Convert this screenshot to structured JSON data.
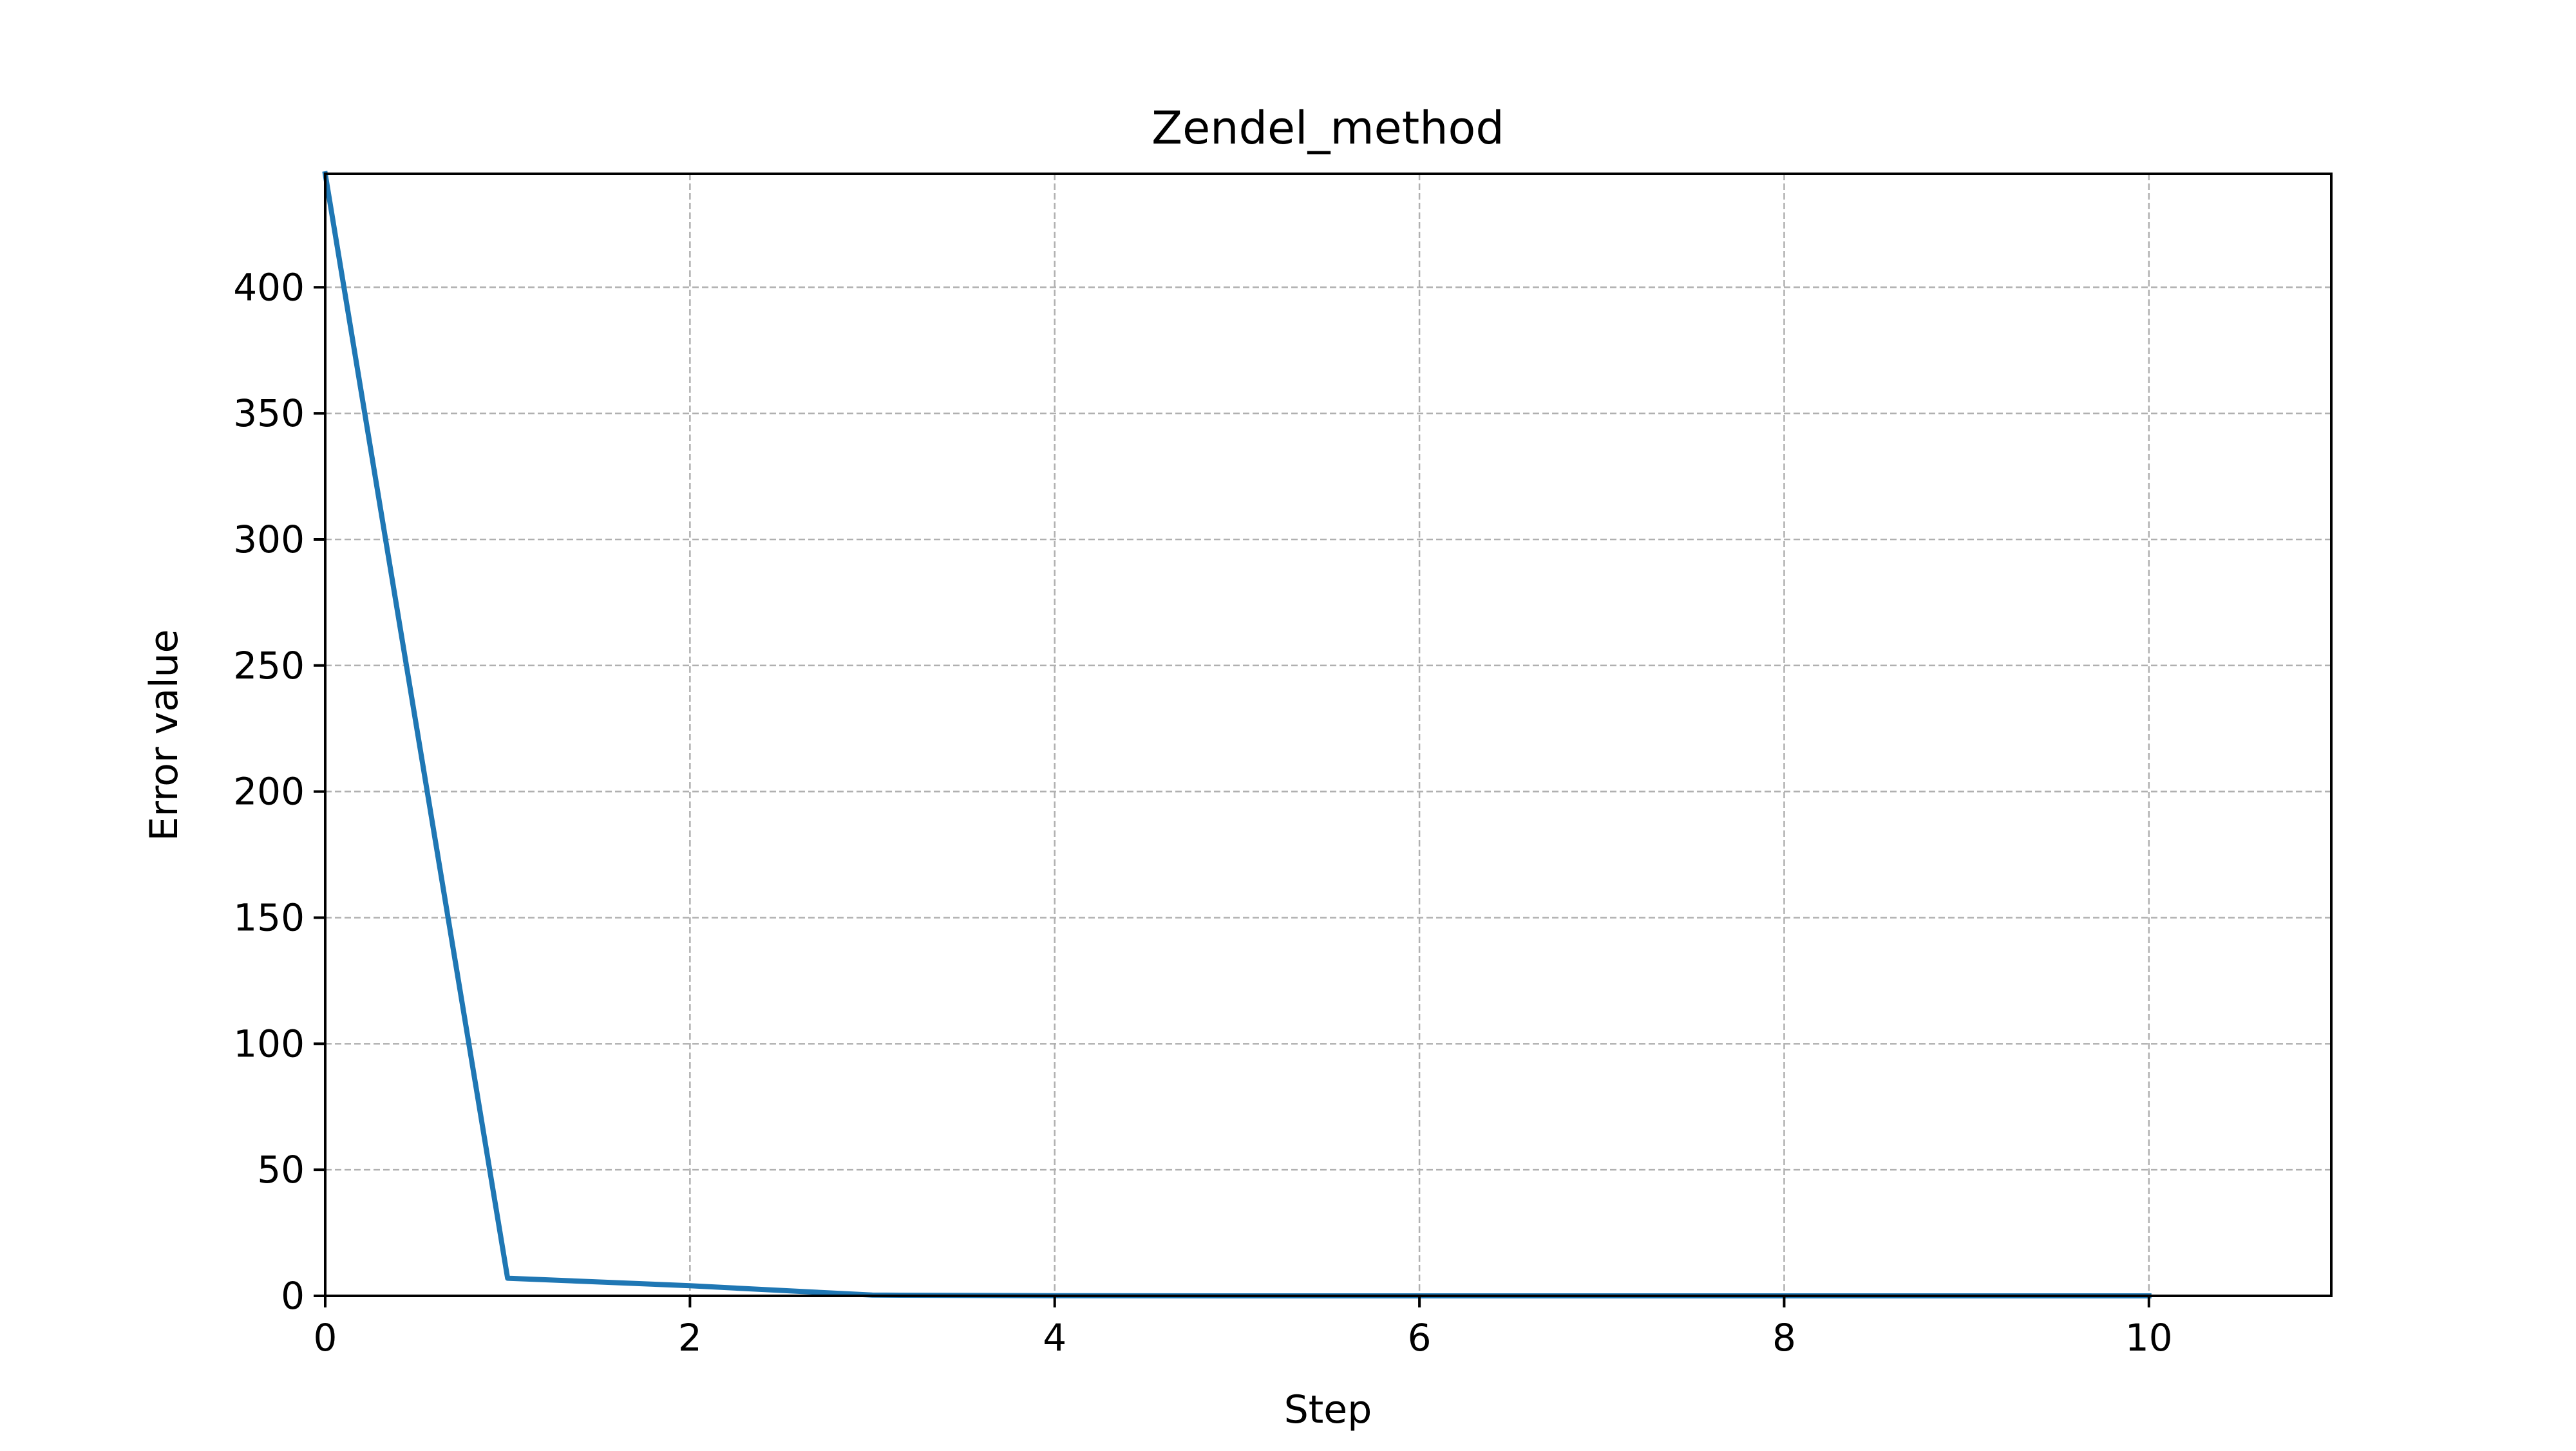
{
  "chart_data": {
    "type": "line",
    "title": "Zendel_method",
    "xlabel": "Step",
    "ylabel": "Error value",
    "xlim": [
      0,
      11
    ],
    "ylim": [
      0,
      445
    ],
    "xticks": [
      0,
      2,
      4,
      6,
      8,
      10
    ],
    "yticks": [
      0,
      50,
      100,
      150,
      200,
      250,
      300,
      350,
      400
    ],
    "grid": true,
    "legend": "none",
    "series": [
      {
        "x": [
          0,
          1,
          2,
          3,
          4,
          5,
          6,
          7,
          8,
          9,
          10
        ],
        "y": [
          445,
          7,
          4,
          0.3,
          0.05,
          0.01,
          0,
          0,
          0,
          0,
          0
        ],
        "color": "#1f77b4"
      }
    ]
  }
}
